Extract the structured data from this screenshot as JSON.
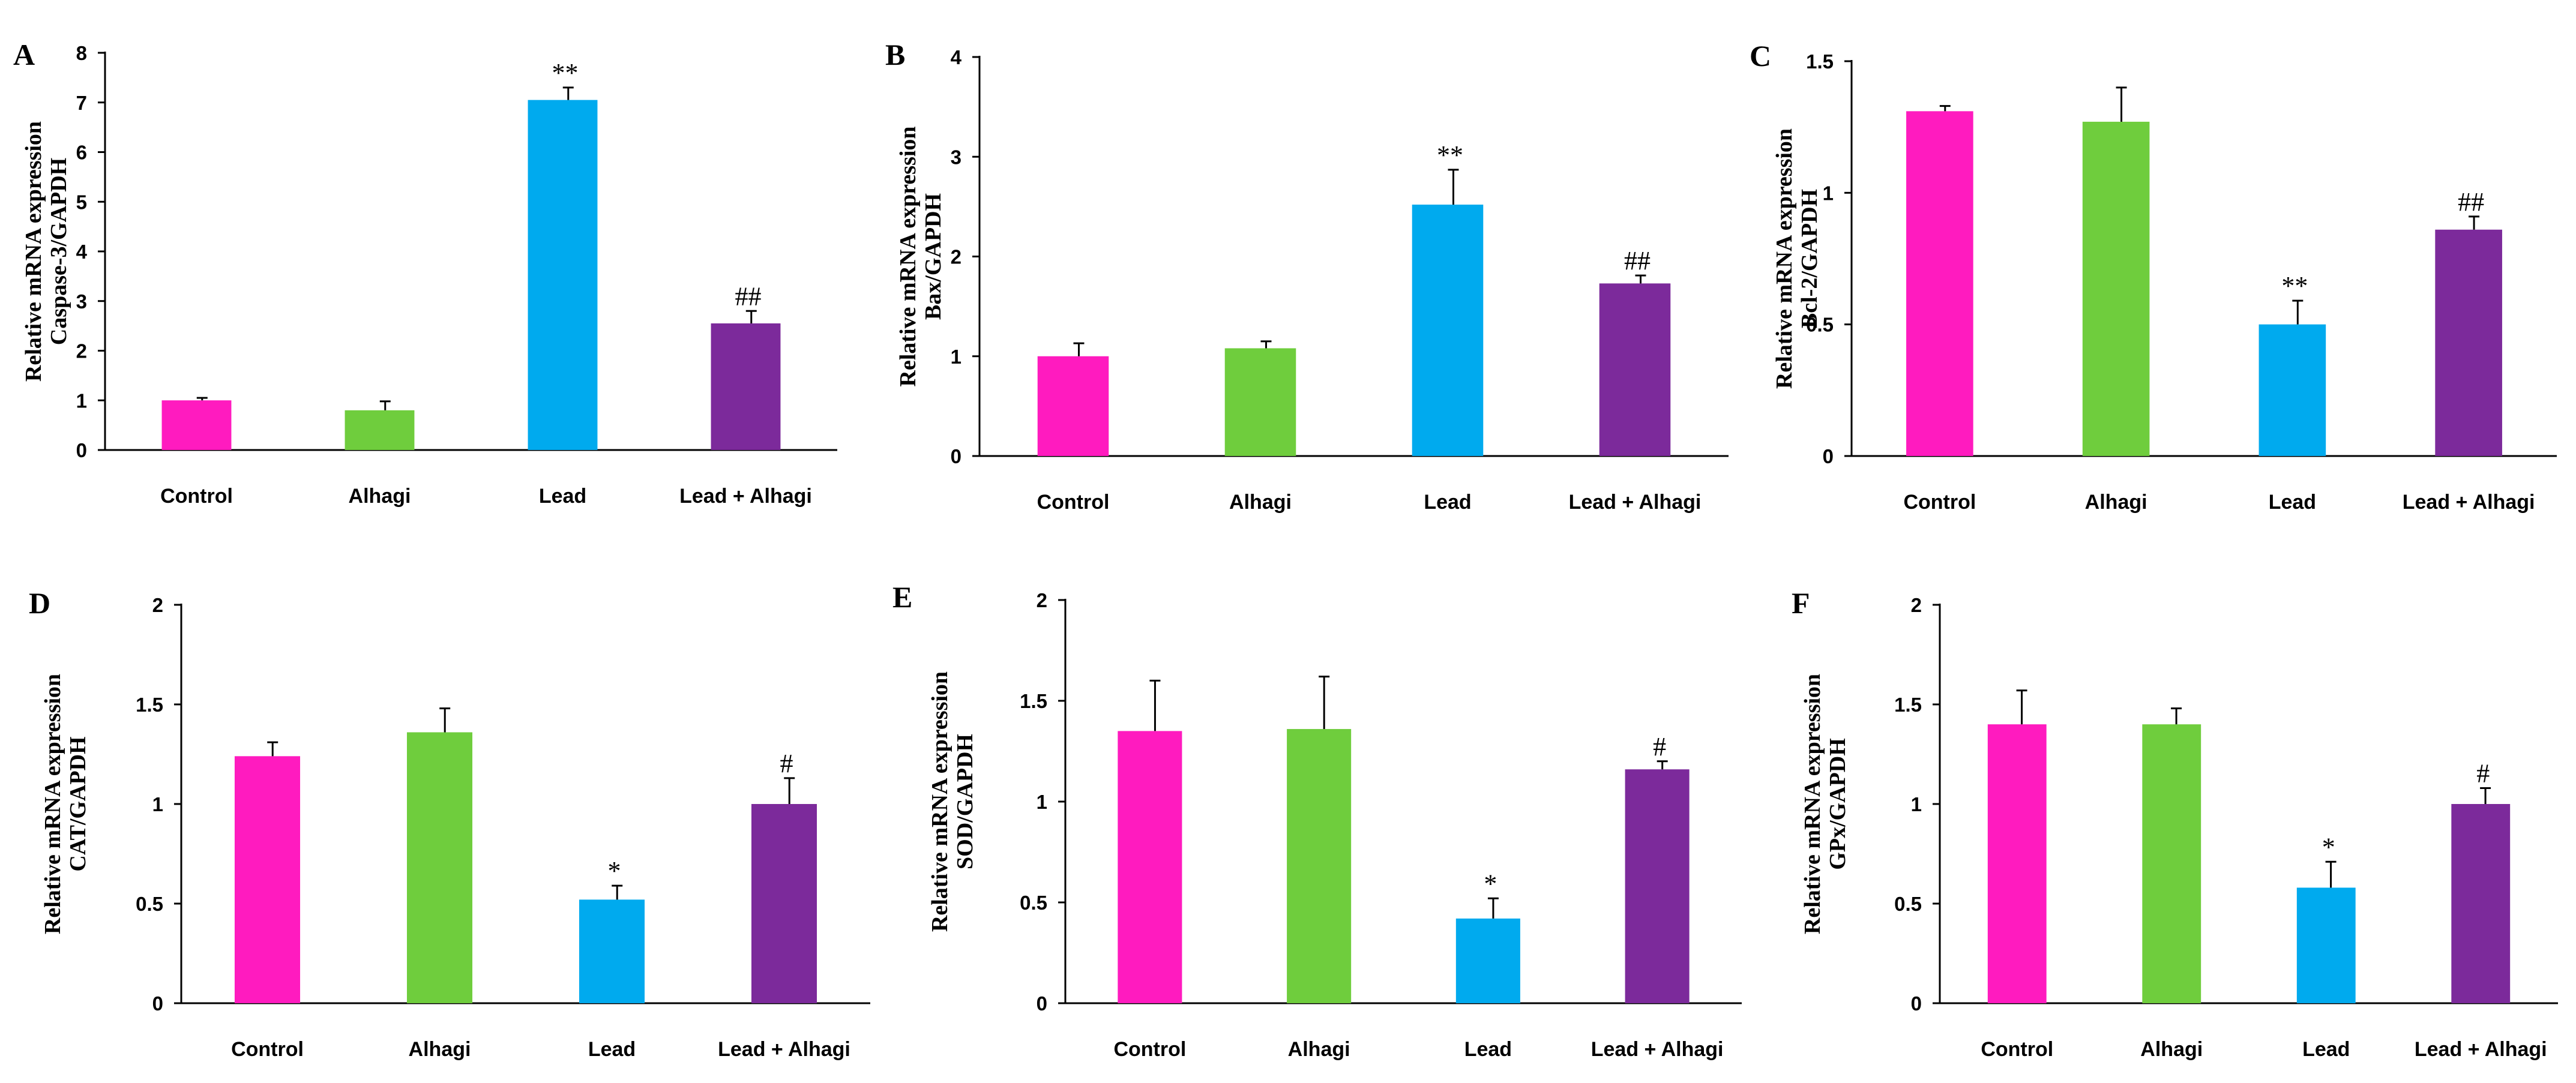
{
  "colors": {
    "Control": "#ff1bbf",
    "Alhagi": "#6fcd3d",
    "Lead": "#00aaee",
    "Lead + Alhagi": "#7c2a9b",
    "axis": "#000000"
  },
  "chart_data": [
    {
      "panel": "A",
      "type": "bar",
      "ylabel": [
        "Relative mRNA expression",
        "Caspase-3/GAPDH"
      ],
      "categories": [
        "Control",
        "Alhagi",
        "Lead",
        "Lead + Alhagi"
      ],
      "values": [
        1.0,
        0.8,
        7.05,
        2.55
      ],
      "errors": [
        0.05,
        0.18,
        0.25,
        0.25
      ],
      "significance": [
        "",
        "",
        "**",
        "##"
      ],
      "ylim": [
        0,
        8
      ],
      "yticks": [
        "0",
        "1",
        "2",
        "3",
        "4",
        "5",
        "6",
        "7",
        "8"
      ]
    },
    {
      "panel": "B",
      "type": "bar",
      "ylabel": [
        "Relative mRNA expression",
        "Bax/GAPDH"
      ],
      "categories": [
        "Control",
        "Alhagi",
        "Lead",
        "Lead + Alhagi"
      ],
      "values": [
        1.0,
        1.08,
        2.52,
        1.73
      ],
      "errors": [
        0.13,
        0.07,
        0.35,
        0.08
      ],
      "significance": [
        "",
        "",
        "**",
        "##"
      ],
      "ylim": [
        0,
        4
      ],
      "yticks": [
        "0",
        "1",
        "2",
        "3",
        "4"
      ]
    },
    {
      "panel": "C",
      "type": "bar",
      "ylabel": [
        "Relative mRNA expression",
        "Bcl-2/GAPDH"
      ],
      "categories": [
        "Control",
        "Alhagi",
        "Lead",
        "Lead + Alhagi"
      ],
      "values": [
        1.31,
        1.27,
        0.5,
        0.86
      ],
      "errors": [
        0.02,
        0.13,
        0.09,
        0.05
      ],
      "significance": [
        "",
        "",
        "**",
        "##"
      ],
      "ylim": [
        0,
        1.5
      ],
      "yticks": [
        "0",
        "0.5",
        "1",
        "1.5"
      ]
    },
    {
      "panel": "D",
      "type": "bar",
      "ylabel": [
        "Relative mRNA expression",
        "CAT/GAPDH"
      ],
      "categories": [
        "Control",
        "Alhagi",
        "Lead",
        "Lead + Alhagi"
      ],
      "values": [
        1.24,
        1.36,
        0.52,
        1.0
      ],
      "errors": [
        0.07,
        0.12,
        0.07,
        0.13
      ],
      "significance": [
        "",
        "",
        "*",
        "#"
      ],
      "ylim": [
        0,
        2
      ],
      "yticks": [
        "0",
        "0.5",
        "1",
        "1.5",
        "2"
      ]
    },
    {
      "panel": "E",
      "type": "bar",
      "ylabel": [
        "Relative mRNA expression",
        "SOD/GAPDH"
      ],
      "categories": [
        "Control",
        "Alhagi",
        "Lead",
        "Lead + Alhagi"
      ],
      "values": [
        1.35,
        1.36,
        0.42,
        1.16
      ],
      "errors": [
        0.25,
        0.26,
        0.1,
        0.04
      ],
      "significance": [
        "",
        "",
        "*",
        "#"
      ],
      "ylim": [
        0,
        2
      ],
      "yticks": [
        "0",
        "0.5",
        "1",
        "1.5",
        "2"
      ]
    },
    {
      "panel": "F",
      "type": "bar",
      "ylabel": [
        "Relative mRNA expression",
        "GPx/GAPDH"
      ],
      "categories": [
        "Control",
        "Alhagi",
        "Lead",
        "Lead + Alhagi"
      ],
      "values": [
        1.4,
        1.4,
        0.58,
        1.0
      ],
      "errors": [
        0.17,
        0.08,
        0.13,
        0.08
      ],
      "significance": [
        "",
        "",
        "*",
        "#"
      ],
      "ylim": [
        0,
        2
      ],
      "yticks": [
        "0",
        "0.5",
        "1",
        "1.5",
        "2"
      ]
    }
  ]
}
